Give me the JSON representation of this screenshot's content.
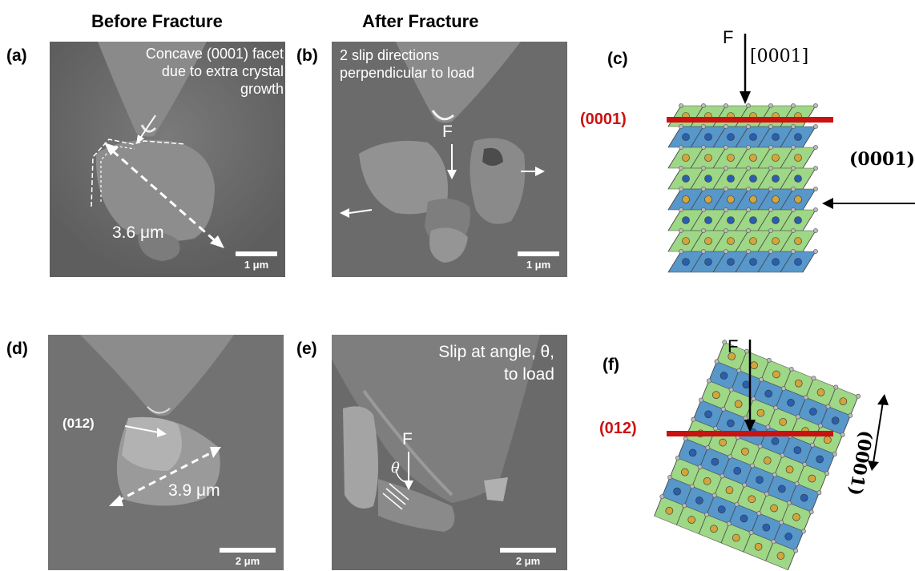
{
  "columns": {
    "before": "Before Fracture",
    "after": "After Fracture"
  },
  "panels": {
    "a": {
      "label": "(a)",
      "annotation": [
        "Concave (0001) facet",
        "due to extra crystal",
        "growth"
      ],
      "measure": "3.6 μm",
      "scalebar": "1 μm"
    },
    "b": {
      "label": "(b)",
      "annotation": [
        "2 slip directions",
        "perpendicular to load"
      ],
      "force": "F",
      "scalebar": "1 μm"
    },
    "c": {
      "label": "(c)",
      "force": "F",
      "direction": "[0001]",
      "plane": "(0001)",
      "side_label": "(0001)"
    },
    "d": {
      "label": "(d)",
      "facet": "(012)",
      "measure": "3.9 μm",
      "scalebar": "2 μm"
    },
    "e": {
      "label": "(e)",
      "annotation": [
        "Slip at angle, θ,",
        "to load"
      ],
      "force": "F",
      "angle": "θ",
      "scalebar": "2 μm"
    },
    "f": {
      "label": "(f)",
      "force": "F",
      "plane": "(012)",
      "side_label": "(0001)"
    }
  },
  "colors": {
    "plane_red": "#cc1111",
    "octa_green": "#7dc95e",
    "octa_blue": "#1f74b8",
    "atom_gold": "#d4a53a",
    "atom_blue": "#2a5fae"
  }
}
